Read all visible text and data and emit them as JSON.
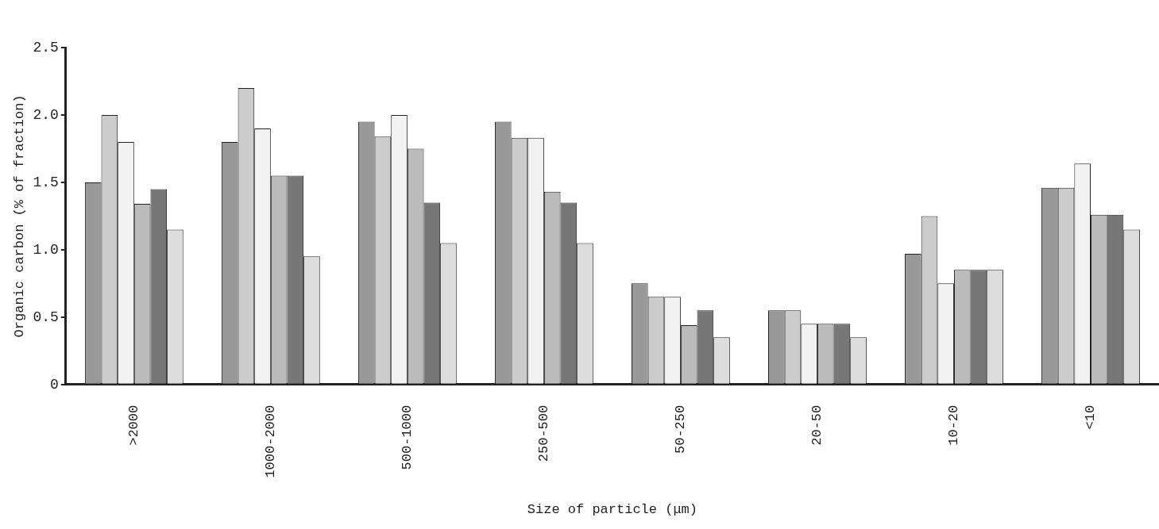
{
  "chart_data": {
    "type": "bar",
    "xlabel": "Size of particle (μm)",
    "ylabel": "Organic carbon (% of fraction)",
    "categories": [
      ">2000",
      "1000-2000",
      "500-1000",
      "250-500",
      "50-250",
      "20-50",
      "10-20",
      "<10"
    ],
    "series": [
      {
        "color": "#999999",
        "values": [
          1.5,
          1.8,
          1.95,
          1.95,
          0.75,
          0.55,
          0.97,
          1.46
        ]
      },
      {
        "color": "#cccccc",
        "values": [
          2.0,
          2.2,
          1.84,
          1.83,
          0.65,
          0.55,
          1.25,
          1.46
        ]
      },
      {
        "color": "#f2f2f2",
        "values": [
          1.8,
          1.9,
          2.0,
          1.83,
          0.65,
          0.45,
          0.75,
          1.64
        ]
      },
      {
        "color": "#bbbbbb",
        "values": [
          1.34,
          1.55,
          1.75,
          1.43,
          0.44,
          0.45,
          0.85,
          1.26
        ]
      },
      {
        "color": "#777777",
        "values": [
          1.45,
          1.55,
          1.35,
          1.35,
          0.55,
          0.45,
          0.85,
          1.26
        ]
      },
      {
        "color": "#dddddd",
        "values": [
          1.15,
          0.95,
          1.05,
          1.05,
          0.35,
          0.35,
          0.85,
          1.15
        ]
      }
    ],
    "ylim": [
      0,
      2.5
    ],
    "yticks": [
      {
        "value": 0,
        "label": "0"
      },
      {
        "value": 0.5,
        "label": "0.5"
      },
      {
        "value": 1,
        "label": "1.0"
      },
      {
        "value": 1.5,
        "label": "1.5"
      },
      {
        "value": 2,
        "label": "2.0"
      },
      {
        "value": 2.5,
        "label": "2.5"
      }
    ],
    "grid": false,
    "legend": false
  }
}
